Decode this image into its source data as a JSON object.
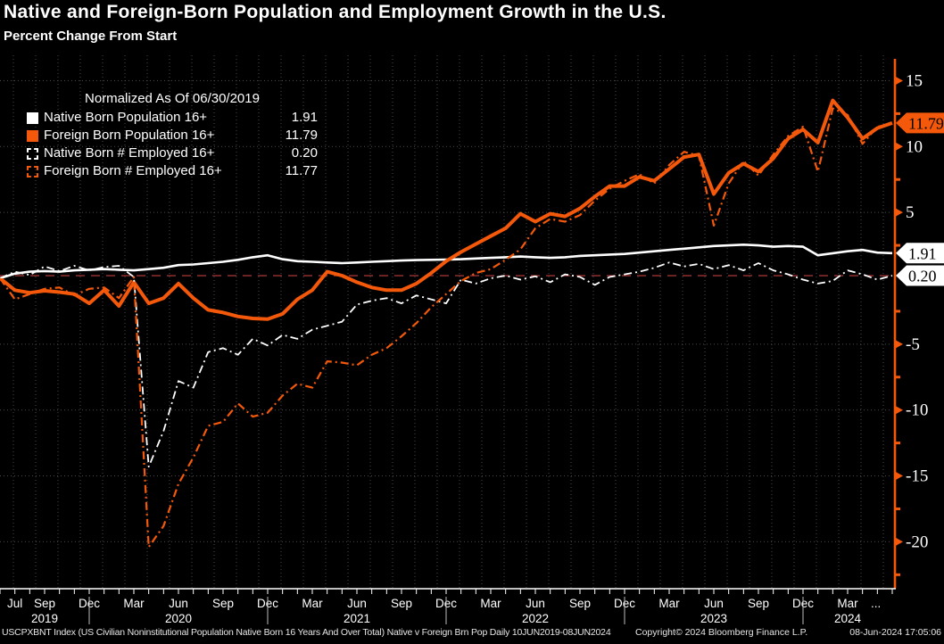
{
  "header": {
    "title": "Native and Foreign-Born Population and Employment Growth in the U.S.",
    "subtitle": "Percent Change From Start"
  },
  "legend": {
    "header": "Normalized As Of 06/30/2019",
    "items": [
      {
        "label": "Native Born Population 16+",
        "value": "1.91",
        "swatch": "solid",
        "color": "#ffffff"
      },
      {
        "label": "Foreign Born Population 16+",
        "value": "11.79",
        "swatch": "solid",
        "color": "#f4590b"
      },
      {
        "label": "Native Born # Employed 16+",
        "value": "0.20",
        "swatch": "dashed",
        "color": "#ffffff"
      },
      {
        "label": "Foreign Born # Employed 16+",
        "value": "11.77",
        "swatch": "dashed",
        "color": "#f4590b"
      }
    ]
  },
  "chart_data": {
    "type": "line",
    "title": "Native and Foreign-Born Population and Employment Growth in the U.S.",
    "subtitle": "Percent Change From Start",
    "normalized_as_of": "06/30/2019",
    "x_start": "Jun 2019",
    "x_end": "Jun 2024",
    "x_unit": "month",
    "ylabel": "Percent Change From Start",
    "ylim": [
      -23.5,
      16.5
    ],
    "grid": true,
    "y_axis": {
      "side": "right",
      "major_ticks": [
        15,
        10,
        5,
        -5,
        -10,
        -15,
        -20
      ],
      "minor_ticks": [
        12.5,
        7.5,
        2.5,
        -2.5,
        -7.5,
        -12.5,
        -17.5,
        -22.5
      ],
      "last_value_tags": [
        {
          "label": "11.79",
          "value": 11.79,
          "style": "orange"
        },
        {
          "label": "1.91",
          "value": 1.91,
          "style": "white"
        },
        {
          "label": "0.20",
          "value": 0.2,
          "style": "white"
        }
      ]
    },
    "reference_line": {
      "value": 0.2,
      "style": "dashed",
      "color": "#9c3434"
    },
    "x_axis": {
      "month_labels": [
        {
          "m": 1,
          "label": "Jul"
        },
        {
          "m": 3,
          "label": "Sep"
        },
        {
          "m": 6,
          "label": "Dec"
        },
        {
          "m": 9,
          "label": "Mar"
        },
        {
          "m": 12,
          "label": "Jun"
        },
        {
          "m": 15,
          "label": "Sep"
        },
        {
          "m": 18,
          "label": "Dec"
        },
        {
          "m": 21,
          "label": "Mar"
        },
        {
          "m": 24,
          "label": "Jun"
        },
        {
          "m": 27,
          "label": "Sep"
        },
        {
          "m": 30,
          "label": "Dec"
        },
        {
          "m": 33,
          "label": "Mar"
        },
        {
          "m": 36,
          "label": "Jun"
        },
        {
          "m": 39,
          "label": "Sep"
        },
        {
          "m": 42,
          "label": "Dec"
        },
        {
          "m": 45,
          "label": "Mar"
        },
        {
          "m": 48,
          "label": "Jun"
        },
        {
          "m": 51,
          "label": "Sep"
        },
        {
          "m": 54,
          "label": "Dec"
        },
        {
          "m": 57,
          "label": "Mar"
        },
        {
          "m": 58.9,
          "label": "..."
        }
      ],
      "year_labels": [
        {
          "m": 3,
          "label": "2019"
        },
        {
          "m": 12,
          "label": "2020"
        },
        {
          "m": 24,
          "label": "2021"
        },
        {
          "m": 36,
          "label": "2022"
        },
        {
          "m": 48,
          "label": "2023"
        },
        {
          "m": 57,
          "label": "2024"
        }
      ],
      "year_separators_m": [
        6,
        18,
        30,
        42,
        54
      ]
    },
    "series": [
      {
        "name": "Native Born Population 16+",
        "color": "#ffffff",
        "style": "solid",
        "width": 2.6,
        "last": 1.91,
        "values": [
          0,
          0.35,
          0.5,
          0.55,
          0.5,
          0.6,
          0.65,
          0.7,
          0.65,
          0.6,
          0.7,
          0.8,
          1.0,
          1.05,
          1.15,
          1.25,
          1.4,
          1.6,
          1.75,
          1.45,
          1.3,
          1.25,
          1.2,
          1.15,
          1.2,
          1.25,
          1.3,
          1.35,
          1.38,
          1.4,
          1.42,
          1.45,
          1.5,
          1.55,
          1.6,
          1.65,
          1.6,
          1.55,
          1.6,
          1.7,
          1.75,
          1.8,
          1.85,
          1.95,
          2.05,
          2.15,
          2.25,
          2.35,
          2.45,
          2.5,
          2.55,
          2.5,
          2.4,
          2.45,
          2.4,
          1.75,
          1.9,
          2.05,
          2.15,
          1.95,
          1.91
        ]
      },
      {
        "name": "Foreign Born Population 16+",
        "color": "#f4590b",
        "style": "solid",
        "width": 4,
        "last": 11.79,
        "values": [
          0,
          -0.9,
          -1.1,
          -0.95,
          -1.05,
          -1.2,
          -1.9,
          -0.9,
          -2.1,
          -0.3,
          -1.9,
          -1.5,
          -0.4,
          -1.5,
          -2.4,
          -2.6,
          -2.9,
          -3.05,
          -3.1,
          -2.7,
          -1.6,
          -0.9,
          0.5,
          0.2,
          -0.3,
          -0.7,
          -0.9,
          -0.9,
          -0.4,
          0.4,
          1.3,
          2.0,
          2.6,
          3.2,
          3.8,
          4.9,
          4.3,
          4.9,
          4.7,
          5.3,
          6.2,
          7.0,
          7.0,
          7.7,
          7.4,
          8.3,
          9.2,
          9.4,
          6.4,
          8.0,
          8.7,
          8.1,
          9.1,
          10.6,
          11.3,
          10.3,
          13.5,
          12.2,
          10.6,
          11.4,
          11.79
        ]
      },
      {
        "name": "Native Born # Employed 16+",
        "color": "#ffffff",
        "style": "dashed",
        "width": 1.8,
        "last": 0.2,
        "values": [
          0,
          0.5,
          0.25,
          0.9,
          0.55,
          0.95,
          0.6,
          0.85,
          0.95,
          0.1,
          -14.3,
          -11.6,
          -7.8,
          -8.3,
          -5.6,
          -5.3,
          -5.8,
          -4.6,
          -5.1,
          -4.3,
          -4.6,
          -3.9,
          -3.6,
          -3.3,
          -2.0,
          -1.7,
          -1.5,
          -1.9,
          -1.3,
          -1.6,
          -1.9,
          -0.1,
          -0.4,
          0.0,
          0.2,
          -0.1,
          0.15,
          -0.3,
          0.3,
          0.1,
          -0.5,
          0.1,
          0.3,
          0.5,
          0.8,
          1.2,
          0.9,
          1.1,
          0.7,
          1.0,
          0.6,
          1.15,
          0.6,
          0.3,
          -0.1,
          -0.4,
          -0.2,
          0.6,
          0.3,
          -0.1,
          0.2
        ]
      },
      {
        "name": "Foreign Born # Employed 16+",
        "color": "#f4590b",
        "style": "dashed",
        "width": 2.2,
        "last": 11.77,
        "values": [
          0,
          -1.6,
          -1.2,
          -0.8,
          -0.7,
          -1.3,
          -0.8,
          -0.7,
          -1.5,
          0.1,
          -20.4,
          -18.8,
          -15.6,
          -13.6,
          -11.2,
          -10.9,
          -9.5,
          -10.5,
          -10.2,
          -8.9,
          -8.0,
          -8.3,
          -6.3,
          -6.4,
          -6.6,
          -5.8,
          -5.3,
          -4.4,
          -3.4,
          -2.2,
          -1.2,
          -0.2,
          0.4,
          0.7,
          1.4,
          2.2,
          3.8,
          4.5,
          4.3,
          4.8,
          5.9,
          6.8,
          7.4,
          7.9,
          7.2,
          8.6,
          9.6,
          9.3,
          4.0,
          7.2,
          8.9,
          7.8,
          9.4,
          10.8,
          11.5,
          8.1,
          12.9,
          12.4,
          10.2,
          11.5,
          11.77
        ]
      }
    ]
  },
  "footer": {
    "left": "USCPXBNT Index (US Civilian Noninstitutional Population Native Born 16 Years And Over Total) Native v Foreign Brn Pop  Daily 10JUN2019-08JUN2024",
    "copyright": "Copyright© 2024 Bloomberg Finance L.P.",
    "datetime": "08-Jun-2024 17:05:06"
  },
  "colors": {
    "orange": "#f4590b",
    "white": "#ffffff",
    "background": "#000000",
    "grid": "#4a4a4a",
    "ref_line": "#9c3434",
    "tag_text": "#000000"
  }
}
